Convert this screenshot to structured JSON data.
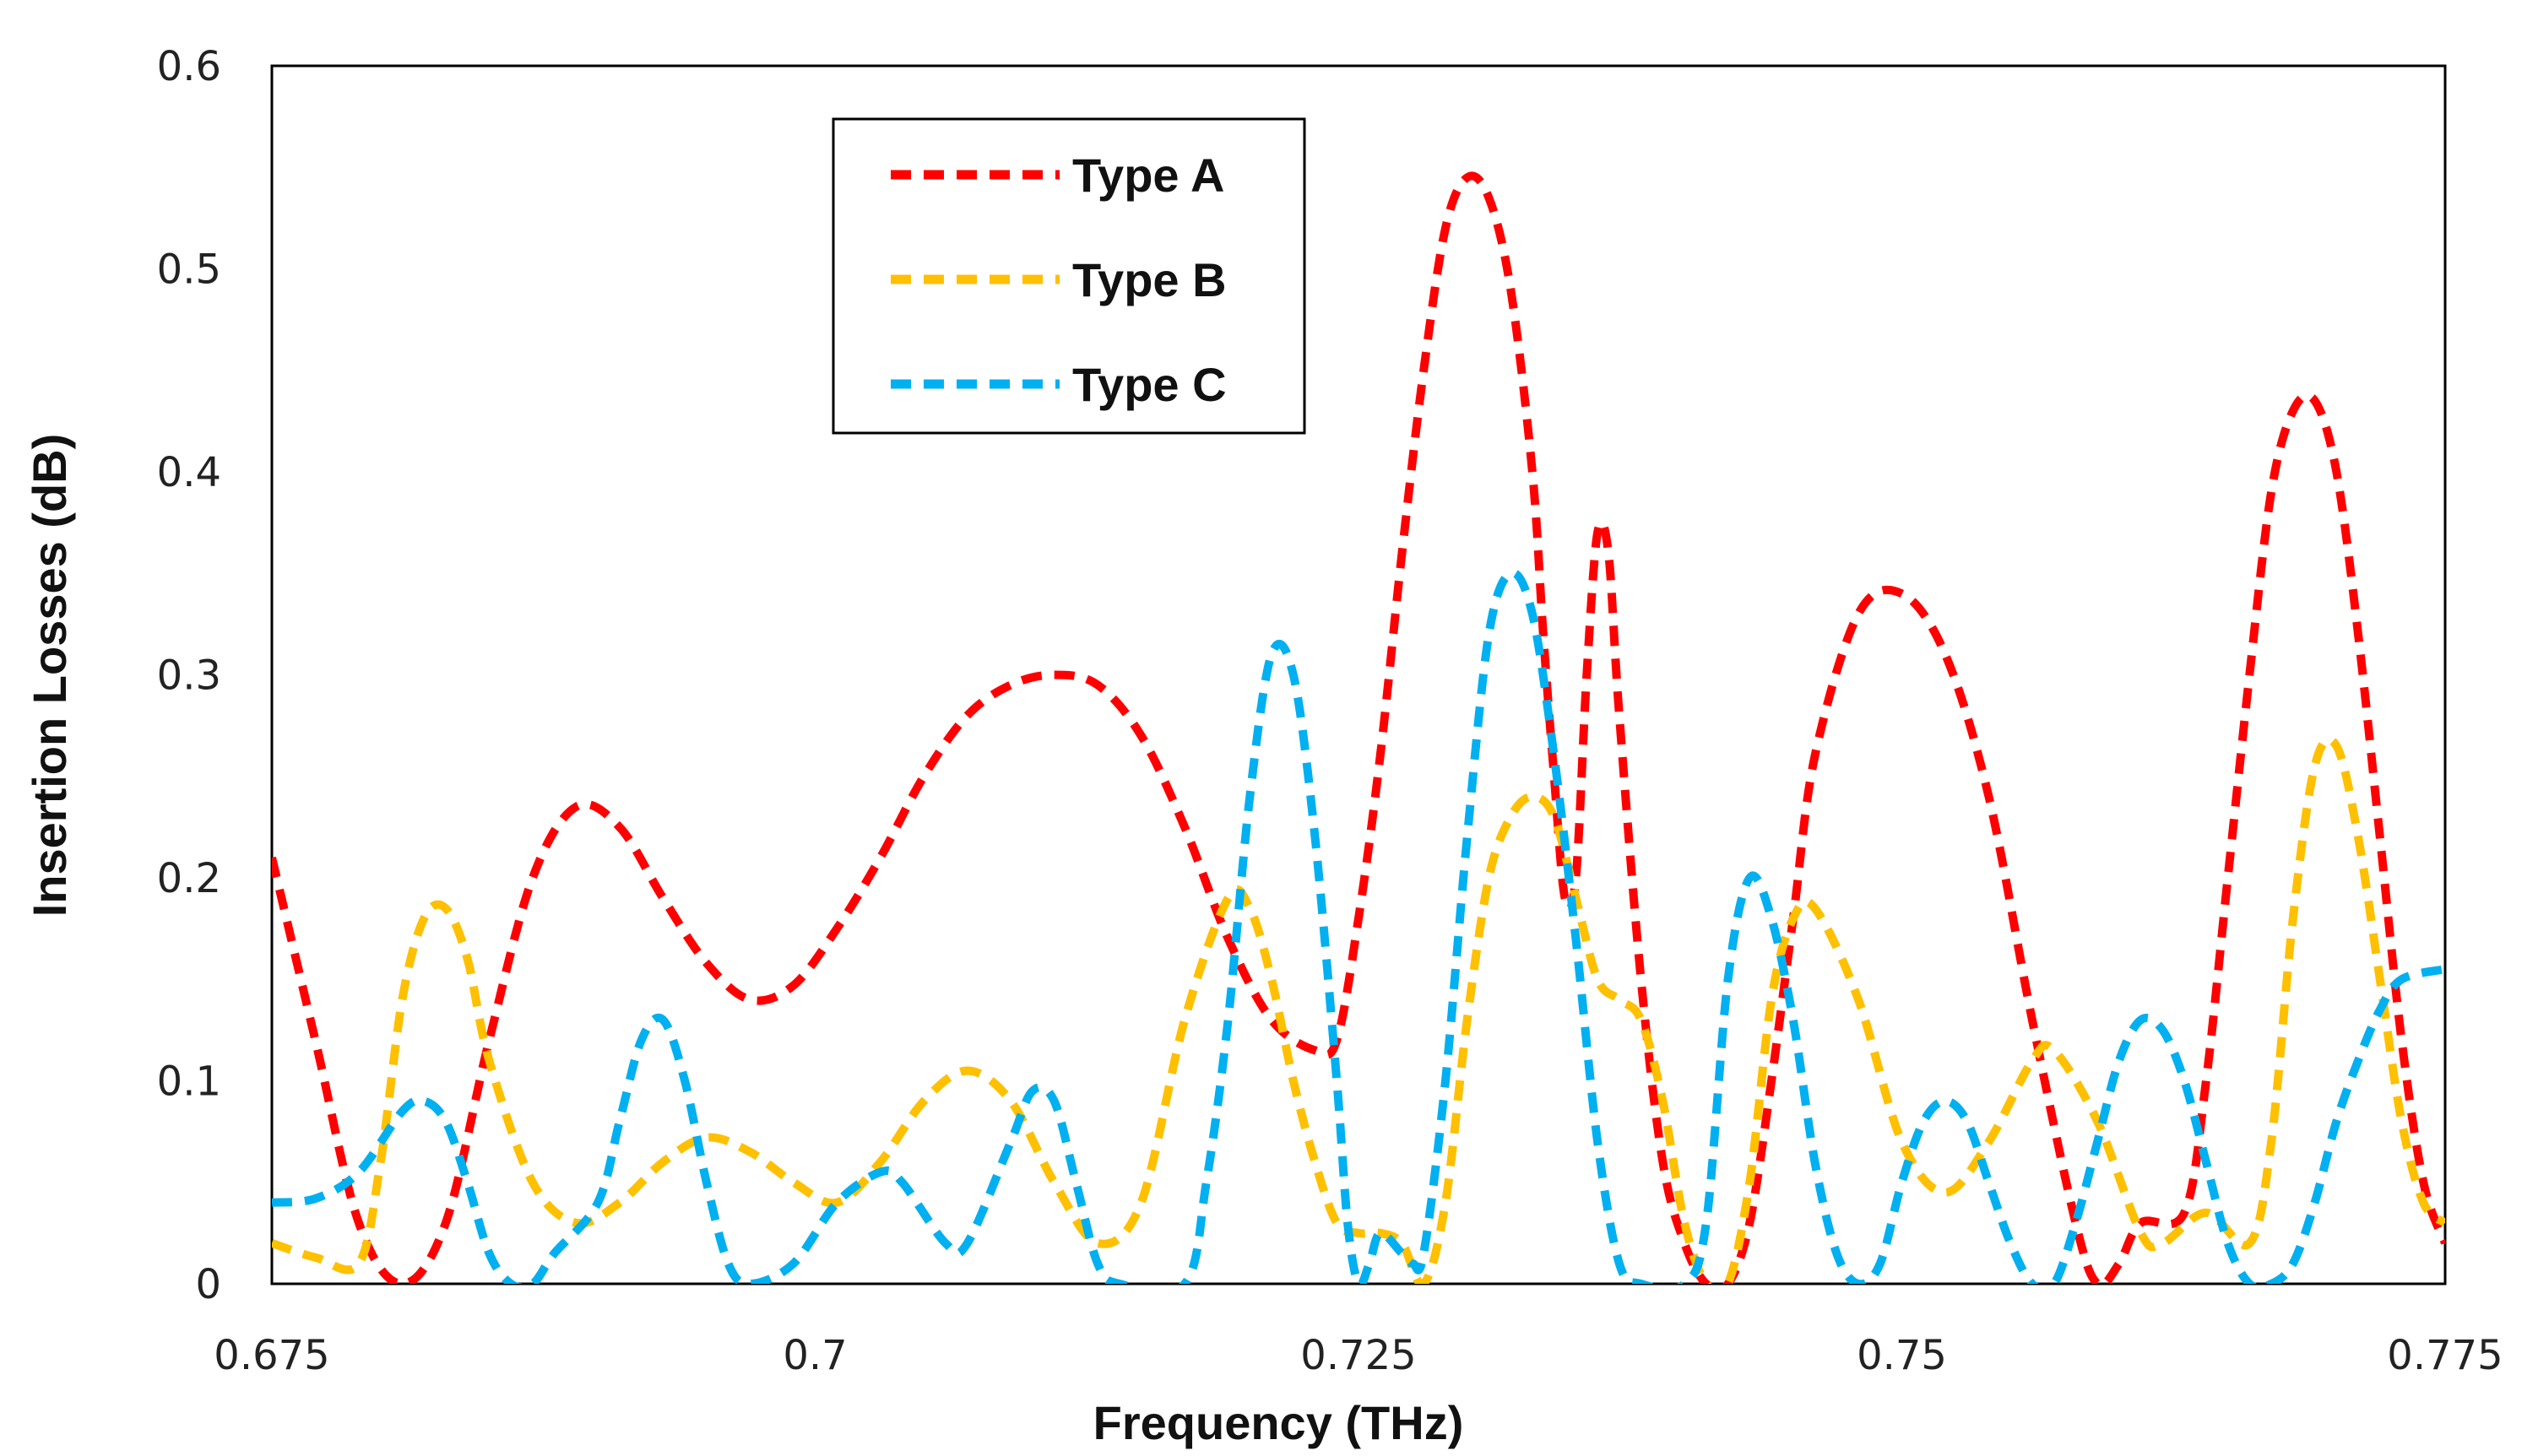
{
  "chart_data": {
    "type": "line",
    "title": "",
    "xlabel": "Frequency (THz)",
    "ylabel": "Insertion Losses  (dB)",
    "xlim": [
      0.675,
      0.775
    ],
    "ylim": [
      0,
      0.6
    ],
    "xticks": [
      0.675,
      0.7,
      0.725,
      0.75,
      0.775
    ],
    "xtick_labels": [
      "0.675",
      "0.7",
      "0.725",
      "0.75",
      "0.775"
    ],
    "yticks": [
      0,
      0.1,
      0.2,
      0.3,
      0.4,
      0.5,
      0.6
    ],
    "ytick_labels": [
      "0",
      "0.1",
      "0.2",
      "0.3",
      "0.4",
      "0.5",
      "0.6"
    ],
    "grid": false,
    "legend_position": "top-left-center",
    "series": [
      {
        "name": "Type A",
        "color": "#ff0000",
        "style": "dashed",
        "points": [
          [
            0.675,
            0.21
          ],
          [
            0.677,
            0.12
          ],
          [
            0.679,
            0.03
          ],
          [
            0.681,
            0.0
          ],
          [
            0.683,
            0.03
          ],
          [
            0.685,
            0.12
          ],
          [
            0.687,
            0.2
          ],
          [
            0.689,
            0.235
          ],
          [
            0.691,
            0.225
          ],
          [
            0.693,
            0.19
          ],
          [
            0.695,
            0.158
          ],
          [
            0.697,
            0.14
          ],
          [
            0.699,
            0.147
          ],
          [
            0.701,
            0.175
          ],
          [
            0.703,
            0.21
          ],
          [
            0.705,
            0.25
          ],
          [
            0.707,
            0.28
          ],
          [
            0.709,
            0.295
          ],
          [
            0.711,
            0.3
          ],
          [
            0.713,
            0.295
          ],
          [
            0.715,
            0.27
          ],
          [
            0.717,
            0.225
          ],
          [
            0.719,
            0.17
          ],
          [
            0.721,
            0.13
          ],
          [
            0.723,
            0.115
          ],
          [
            0.724,
            0.12
          ],
          [
            0.725,
            0.18
          ],
          [
            0.726,
            0.26
          ],
          [
            0.727,
            0.36
          ],
          [
            0.728,
            0.45
          ],
          [
            0.729,
            0.52
          ],
          [
            0.73,
            0.545
          ],
          [
            0.731,
            0.535
          ],
          [
            0.732,
            0.49
          ],
          [
            0.733,
            0.4
          ],
          [
            0.7335,
            0.32
          ],
          [
            0.734,
            0.25
          ],
          [
            0.7345,
            0.19
          ],
          [
            0.735,
            0.2
          ],
          [
            0.7355,
            0.3
          ],
          [
            0.736,
            0.37
          ],
          [
            0.7365,
            0.36
          ],
          [
            0.737,
            0.28
          ],
          [
            0.738,
            0.15
          ],
          [
            0.739,
            0.06
          ],
          [
            0.74,
            0.02
          ],
          [
            0.741,
            0.0
          ],
          [
            0.742,
            0.0
          ],
          [
            0.743,
            0.03
          ],
          [
            0.744,
            0.1
          ],
          [
            0.745,
            0.18
          ],
          [
            0.746,
            0.26
          ],
          [
            0.748,
            0.33
          ],
          [
            0.75,
            0.34
          ],
          [
            0.752,
            0.31
          ],
          [
            0.754,
            0.24
          ],
          [
            0.756,
            0.13
          ],
          [
            0.758,
            0.03
          ],
          [
            0.759,
            0.0
          ],
          [
            0.76,
            0.01
          ],
          [
            0.761,
            0.03
          ],
          [
            0.763,
            0.035
          ],
          [
            0.764,
            0.1
          ],
          [
            0.765,
            0.2
          ],
          [
            0.766,
            0.3
          ],
          [
            0.767,
            0.39
          ],
          [
            0.768,
            0.43
          ],
          [
            0.769,
            0.435
          ],
          [
            0.77,
            0.4
          ],
          [
            0.771,
            0.32
          ],
          [
            0.772,
            0.22
          ],
          [
            0.773,
            0.12
          ],
          [
            0.774,
            0.05
          ],
          [
            0.775,
            0.02
          ]
        ]
      },
      {
        "name": "Type B",
        "color": "#ffc000",
        "style": "dashed",
        "points": [
          [
            0.675,
            0.02
          ],
          [
            0.677,
            0.013
          ],
          [
            0.679,
            0.01
          ],
          [
            0.68,
            0.06
          ],
          [
            0.681,
            0.14
          ],
          [
            0.682,
            0.18
          ],
          [
            0.683,
            0.185
          ],
          [
            0.684,
            0.16
          ],
          [
            0.685,
            0.11
          ],
          [
            0.687,
            0.05
          ],
          [
            0.689,
            0.03
          ],
          [
            0.691,
            0.04
          ],
          [
            0.693,
            0.06
          ],
          [
            0.695,
            0.072
          ],
          [
            0.697,
            0.065
          ],
          [
            0.699,
            0.05
          ],
          [
            0.701,
            0.04
          ],
          [
            0.703,
            0.06
          ],
          [
            0.705,
            0.09
          ],
          [
            0.707,
            0.105
          ],
          [
            0.709,
            0.09
          ],
          [
            0.711,
            0.05
          ],
          [
            0.713,
            0.02
          ],
          [
            0.715,
            0.04
          ],
          [
            0.717,
            0.13
          ],
          [
            0.719,
            0.19
          ],
          [
            0.72,
            0.185
          ],
          [
            0.721,
            0.15
          ],
          [
            0.722,
            0.1
          ],
          [
            0.723,
            0.06
          ],
          [
            0.724,
            0.03
          ],
          [
            0.725,
            0.025
          ],
          [
            0.726,
            0.025
          ],
          [
            0.727,
            0.02
          ],
          [
            0.728,
            0.0
          ],
          [
            0.729,
            0.04
          ],
          [
            0.73,
            0.13
          ],
          [
            0.731,
            0.2
          ],
          [
            0.732,
            0.23
          ],
          [
            0.733,
            0.24
          ],
          [
            0.734,
            0.23
          ],
          [
            0.735,
            0.19
          ],
          [
            0.736,
            0.15
          ],
          [
            0.737,
            0.14
          ],
          [
            0.738,
            0.13
          ],
          [
            0.739,
            0.09
          ],
          [
            0.74,
            0.03
          ],
          [
            0.741,
            0.0
          ],
          [
            0.742,
            0.0
          ],
          [
            0.743,
            0.05
          ],
          [
            0.744,
            0.14
          ],
          [
            0.745,
            0.18
          ],
          [
            0.746,
            0.185
          ],
          [
            0.748,
            0.14
          ],
          [
            0.75,
            0.07
          ],
          [
            0.752,
            0.045
          ],
          [
            0.754,
            0.07
          ],
          [
            0.756,
            0.11
          ],
          [
            0.757,
            0.115
          ],
          [
            0.759,
            0.08
          ],
          [
            0.761,
            0.025
          ],
          [
            0.762,
            0.02
          ],
          [
            0.764,
            0.035
          ],
          [
            0.766,
            0.02
          ],
          [
            0.767,
            0.07
          ],
          [
            0.768,
            0.18
          ],
          [
            0.769,
            0.255
          ],
          [
            0.77,
            0.265
          ],
          [
            0.771,
            0.22
          ],
          [
            0.772,
            0.15
          ],
          [
            0.773,
            0.08
          ],
          [
            0.774,
            0.04
          ],
          [
            0.775,
            0.03
          ]
        ]
      },
      {
        "name": "Type C",
        "color": "#00b0f0",
        "style": "dashed",
        "points": [
          [
            0.675,
            0.04
          ],
          [
            0.677,
            0.042
          ],
          [
            0.679,
            0.055
          ],
          [
            0.681,
            0.085
          ],
          [
            0.682,
            0.09
          ],
          [
            0.683,
            0.08
          ],
          [
            0.684,
            0.05
          ],
          [
            0.685,
            0.015
          ],
          [
            0.686,
            0.0
          ],
          [
            0.687,
            0.0
          ],
          [
            0.688,
            0.015
          ],
          [
            0.69,
            0.04
          ],
          [
            0.691,
            0.08
          ],
          [
            0.692,
            0.12
          ],
          [
            0.693,
            0.13
          ],
          [
            0.694,
            0.1
          ],
          [
            0.695,
            0.05
          ],
          [
            0.696,
            0.01
          ],
          [
            0.697,
            0.0
          ],
          [
            0.699,
            0.01
          ],
          [
            0.701,
            0.04
          ],
          [
            0.703,
            0.055
          ],
          [
            0.704,
            0.05
          ],
          [
            0.706,
            0.02
          ],
          [
            0.707,
            0.02
          ],
          [
            0.709,
            0.07
          ],
          [
            0.71,
            0.095
          ],
          [
            0.711,
            0.09
          ],
          [
            0.712,
            0.05
          ],
          [
            0.713,
            0.01
          ],
          [
            0.714,
            0.0
          ],
          [
            0.717,
            0.0
          ],
          [
            0.718,
            0.05
          ],
          [
            0.719,
            0.13
          ],
          [
            0.72,
            0.24
          ],
          [
            0.721,
            0.31
          ],
          [
            0.722,
            0.3
          ],
          [
            0.723,
            0.22
          ],
          [
            0.724,
            0.1
          ],
          [
            0.7245,
            0.03
          ],
          [
            0.725,
            0.0
          ],
          [
            0.7255,
            0.01
          ],
          [
            0.726,
            0.025
          ],
          [
            0.727,
            0.015
          ],
          [
            0.7275,
            0.01
          ],
          [
            0.728,
            0.015
          ],
          [
            0.729,
            0.1
          ],
          [
            0.73,
            0.22
          ],
          [
            0.731,
            0.32
          ],
          [
            0.732,
            0.35
          ],
          [
            0.733,
            0.33
          ],
          [
            0.734,
            0.26
          ],
          [
            0.735,
            0.17
          ],
          [
            0.736,
            0.07
          ],
          [
            0.737,
            0.01
          ],
          [
            0.738,
            0.0
          ],
          [
            0.74,
            0.0
          ],
          [
            0.741,
            0.03
          ],
          [
            0.742,
            0.15
          ],
          [
            0.743,
            0.2
          ],
          [
            0.744,
            0.18
          ],
          [
            0.745,
            0.13
          ],
          [
            0.746,
            0.06
          ],
          [
            0.747,
            0.015
          ],
          [
            0.748,
            0.0
          ],
          [
            0.749,
            0.01
          ],
          [
            0.75,
            0.05
          ],
          [
            0.751,
            0.08
          ],
          [
            0.752,
            0.09
          ],
          [
            0.753,
            0.08
          ],
          [
            0.754,
            0.05
          ],
          [
            0.755,
            0.02
          ],
          [
            0.756,
            0.0
          ],
          [
            0.757,
            0.0
          ],
          [
            0.758,
            0.03
          ],
          [
            0.759,
            0.07
          ],
          [
            0.76,
            0.11
          ],
          [
            0.761,
            0.13
          ],
          [
            0.762,
            0.125
          ],
          [
            0.763,
            0.1
          ],
          [
            0.764,
            0.06
          ],
          [
            0.765,
            0.02
          ],
          [
            0.766,
            0.0
          ],
          [
            0.767,
            0.0
          ],
          [
            0.768,
            0.01
          ],
          [
            0.769,
            0.04
          ],
          [
            0.77,
            0.08
          ],
          [
            0.771,
            0.11
          ],
          [
            0.772,
            0.135
          ],
          [
            0.773,
            0.15
          ],
          [
            0.775,
            0.155
          ]
        ]
      }
    ]
  }
}
